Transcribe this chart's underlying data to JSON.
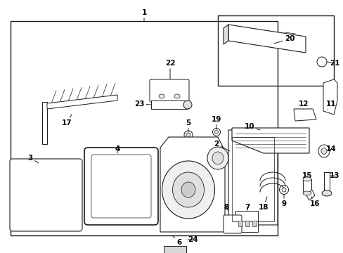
{
  "bg_color": "#ffffff",
  "line_color": "#1a1a1a",
  "text_color": "#000000",
  "fig_width": 4.89,
  "fig_height": 3.6,
  "dpi": 100
}
